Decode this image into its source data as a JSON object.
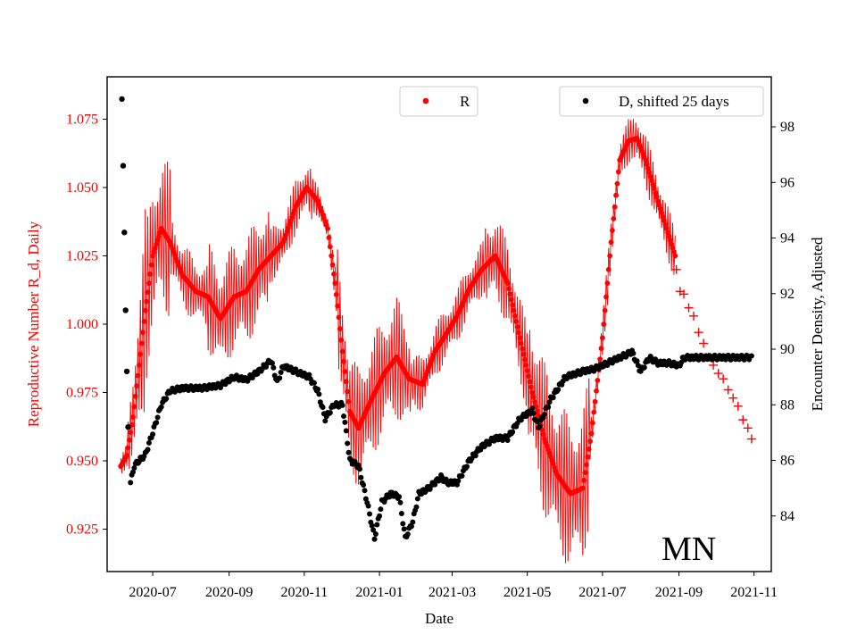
{
  "colors": {
    "r_series": "#ff0000",
    "d_series": "#000000",
    "axes": "#000000",
    "background": "#ffffff"
  },
  "chart_data": {
    "type": "scatter",
    "xlabel": "Date",
    "ylabel_left": "Reproductive Number R_d, Daily",
    "ylabel_right": "Encounter Density, Adjusted",
    "annotation": "MN",
    "grid": false,
    "x_axis": {
      "type": "date",
      "range": [
        "2020-05-25",
        "2021-11-15"
      ],
      "ticks": [
        "2020-07-01",
        "2020-09-01",
        "2020-11-01",
        "2021-01-01",
        "2021-03-01",
        "2021-05-01",
        "2021-07-01",
        "2021-09-01",
        "2021-11-01"
      ],
      "tick_labels": [
        "2020-07",
        "2020-09",
        "2020-11",
        "2021-01",
        "2021-03",
        "2021-05",
        "2021-07",
        "2021-09",
        "2021-11"
      ]
    },
    "y_left": {
      "range": [
        0.9095,
        1.0905
      ],
      "ticks": [
        0.925,
        0.95,
        0.975,
        1.0,
        1.025,
        1.05,
        1.075
      ],
      "tick_labels": [
        "0.925",
        "0.950",
        "0.975",
        "1.000",
        "1.025",
        "1.050",
        "1.075"
      ],
      "color": "#ff0000"
    },
    "y_right": {
      "range": [
        82.0,
        99.8
      ],
      "ticks": [
        84,
        86,
        88,
        90,
        92,
        94,
        96,
        98
      ],
      "tick_labels": [
        "84",
        "86",
        "88",
        "90",
        "92",
        "94",
        "96",
        "98"
      ]
    },
    "legends": [
      {
        "label": "R",
        "marker": "dot",
        "color": "#ff0000",
        "position": "upper-center"
      },
      {
        "label": "D, shifted 25 days",
        "marker": "dot",
        "color": "#000000",
        "position": "upper-right"
      }
    ],
    "series": [
      {
        "name": "R",
        "axis": "left",
        "color": "#ff0000",
        "marker": "dot",
        "note": "daily values with large day-to-day oscillation; trend points below",
        "trend": [
          [
            "2020-06-05",
            0.948
          ],
          [
            "2020-06-10",
            0.952
          ],
          [
            "2020-06-15",
            0.966
          ],
          [
            "2020-06-20",
            0.985
          ],
          [
            "2020-06-25",
            1.005
          ],
          [
            "2020-07-01",
            1.025
          ],
          [
            "2020-07-08",
            1.035
          ],
          [
            "2020-07-15",
            1.03
          ],
          [
            "2020-07-25",
            1.018
          ],
          [
            "2020-08-05",
            1.012
          ],
          [
            "2020-08-15",
            1.01
          ],
          [
            "2020-08-25",
            1.002
          ],
          [
            "2020-09-05",
            1.01
          ],
          [
            "2020-09-15",
            1.012
          ],
          [
            "2020-09-25",
            1.02
          ],
          [
            "2020-10-05",
            1.025
          ],
          [
            "2020-10-15",
            1.03
          ],
          [
            "2020-10-25",
            1.043
          ],
          [
            "2020-11-03",
            1.05
          ],
          [
            "2020-11-12",
            1.045
          ],
          [
            "2020-11-20",
            1.035
          ],
          [
            "2020-11-26",
            1.015
          ],
          [
            "2020-12-02",
            0.99
          ],
          [
            "2020-12-08",
            0.968
          ],
          [
            "2020-12-15",
            0.962
          ],
          [
            "2020-12-25",
            0.972
          ],
          [
            "2021-01-05",
            0.982
          ],
          [
            "2021-01-15",
            0.988
          ],
          [
            "2021-01-25",
            0.98
          ],
          [
            "2021-02-05",
            0.978
          ],
          [
            "2021-02-15",
            0.99
          ],
          [
            "2021-02-25",
            0.997
          ],
          [
            "2021-03-05",
            1.003
          ],
          [
            "2021-03-15",
            1.013
          ],
          [
            "2021-03-25",
            1.02
          ],
          [
            "2021-04-05",
            1.025
          ],
          [
            "2021-04-15",
            1.015
          ],
          [
            "2021-04-25",
            0.995
          ],
          [
            "2021-05-05",
            0.975
          ],
          [
            "2021-05-15",
            0.958
          ],
          [
            "2021-05-25",
            0.945
          ],
          [
            "2021-06-05",
            0.938
          ],
          [
            "2021-06-15",
            0.94
          ],
          [
            "2021-06-22",
            0.96
          ],
          [
            "2021-07-01",
            0.995
          ],
          [
            "2021-07-08",
            1.03
          ],
          [
            "2021-07-15",
            1.06
          ],
          [
            "2021-07-22",
            1.067
          ],
          [
            "2021-07-29",
            1.068
          ],
          [
            "2021-08-05",
            1.06
          ],
          [
            "2021-08-15",
            1.045
          ],
          [
            "2021-08-22",
            1.035
          ],
          [
            "2021-08-29",
            1.025
          ]
        ],
        "projected_plus_markers": [
          [
            "2021-08-30",
            1.02
          ],
          [
            "2021-09-02",
            1.012
          ],
          [
            "2021-09-05",
            1.011
          ],
          [
            "2021-09-09",
            1.006
          ],
          [
            "2021-09-13",
            1.003
          ],
          [
            "2021-09-17",
            0.997
          ],
          [
            "2021-09-21",
            0.993
          ],
          [
            "2021-09-25",
            0.988
          ],
          [
            "2021-09-29",
            0.985
          ],
          [
            "2021-10-03",
            0.982
          ],
          [
            "2021-10-07",
            0.98
          ],
          [
            "2021-10-11",
            0.976
          ],
          [
            "2021-10-15",
            0.973
          ],
          [
            "2021-10-19",
            0.97
          ],
          [
            "2021-10-23",
            0.965
          ],
          [
            "2021-10-27",
            0.962
          ],
          [
            "2021-10-30",
            0.958
          ]
        ]
      },
      {
        "name": "D, shifted 25 days",
        "axis": "right",
        "color": "#000000",
        "marker": "dot",
        "points": [
          [
            "2020-06-06",
            99.0
          ],
          [
            "2020-06-07",
            96.6
          ],
          [
            "2020-06-08",
            94.2
          ],
          [
            "2020-06-09",
            91.4
          ],
          [
            "2020-06-10",
            89.2
          ],
          [
            "2020-06-11",
            87.2
          ],
          [
            "2020-06-13",
            85.2
          ],
          [
            "2020-06-16",
            85.8
          ],
          [
            "2020-06-20",
            86.0
          ],
          [
            "2020-06-25",
            86.2
          ],
          [
            "2020-07-01",
            87.0
          ],
          [
            "2020-07-08",
            88.0
          ],
          [
            "2020-07-15",
            88.5
          ],
          [
            "2020-07-25",
            88.6
          ],
          [
            "2020-08-10",
            88.6
          ],
          [
            "2020-08-25",
            88.7
          ],
          [
            "2020-09-05",
            89.0
          ],
          [
            "2020-09-15",
            88.9
          ],
          [
            "2020-09-25",
            89.2
          ],
          [
            "2020-10-05",
            89.6
          ],
          [
            "2020-10-10",
            88.8
          ],
          [
            "2020-10-15",
            89.4
          ],
          [
            "2020-10-25",
            89.2
          ],
          [
            "2020-11-05",
            89.0
          ],
          [
            "2020-11-12",
            88.5
          ],
          [
            "2020-11-18",
            87.5
          ],
          [
            "2020-11-25",
            88.0
          ],
          [
            "2020-12-02",
            88.0
          ],
          [
            "2020-12-08",
            86.0
          ],
          [
            "2020-12-15",
            85.8
          ],
          [
            "2020-12-22",
            84.5
          ],
          [
            "2020-12-28",
            83.2
          ],
          [
            "2021-01-03",
            84.5
          ],
          [
            "2021-01-10",
            84.8
          ],
          [
            "2021-01-17",
            84.7
          ],
          [
            "2021-01-22",
            83.2
          ],
          [
            "2021-01-28",
            83.8
          ],
          [
            "2021-02-02",
            84.8
          ],
          [
            "2021-02-10",
            85.0
          ],
          [
            "2021-02-20",
            85.4
          ],
          [
            "2021-02-25",
            85.2
          ],
          [
            "2021-03-05",
            85.2
          ],
          [
            "2021-03-15",
            86.0
          ],
          [
            "2021-03-25",
            86.5
          ],
          [
            "2021-04-05",
            86.8
          ],
          [
            "2021-04-15",
            86.8
          ],
          [
            "2021-04-25",
            87.5
          ],
          [
            "2021-05-05",
            87.8
          ],
          [
            "2021-05-10",
            87.2
          ],
          [
            "2021-05-20",
            88.2
          ],
          [
            "2021-06-01",
            89.0
          ],
          [
            "2021-06-15",
            89.2
          ],
          [
            "2021-06-25",
            89.3
          ],
          [
            "2021-07-05",
            89.5
          ],
          [
            "2021-07-15",
            89.7
          ],
          [
            "2021-07-25",
            89.9
          ],
          [
            "2021-08-01",
            89.2
          ],
          [
            "2021-08-08",
            89.7
          ],
          [
            "2021-08-15",
            89.5
          ],
          [
            "2021-08-25",
            89.5
          ],
          [
            "2021-09-01",
            89.4
          ],
          [
            "2021-09-05",
            89.7
          ],
          [
            "2021-09-15",
            89.7
          ],
          [
            "2021-09-25",
            89.7
          ],
          [
            "2021-10-05",
            89.7
          ],
          [
            "2021-10-15",
            89.7
          ],
          [
            "2021-10-25",
            89.7
          ],
          [
            "2021-10-30",
            89.7
          ]
        ]
      }
    ]
  }
}
